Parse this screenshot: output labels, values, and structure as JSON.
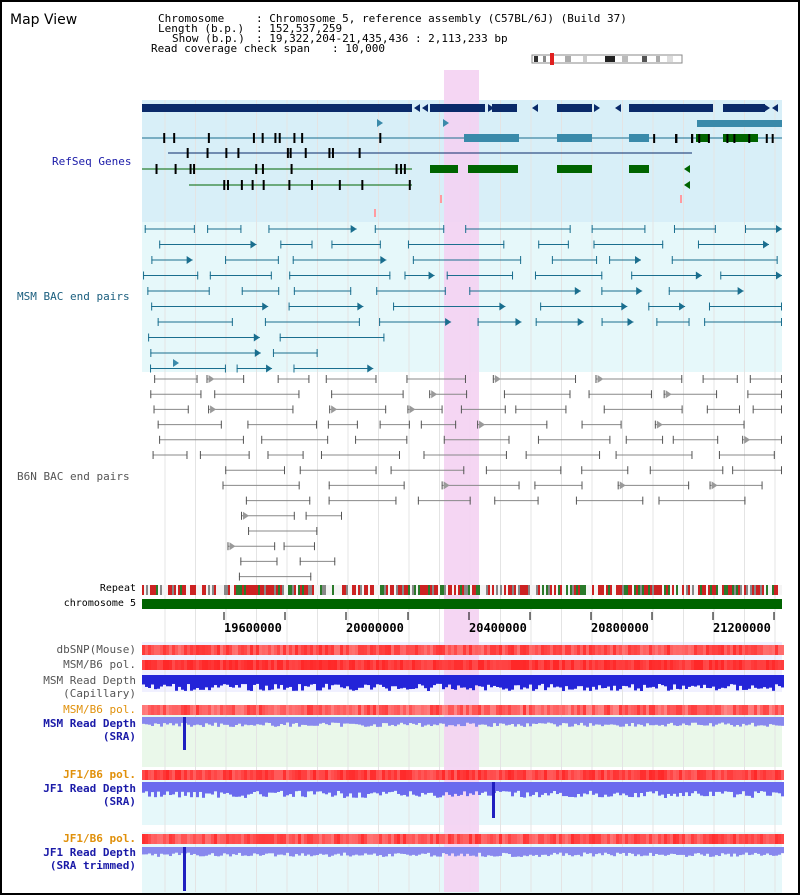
{
  "title": "Map View",
  "header": {
    "chromosome_label": "Chromosome",
    "chromosome_value": ": Chromosome 5, reference assembly (C57BL/6J) (Build 37)",
    "length_label": "Length (b.p.)",
    "length_value": ": 152,537,259",
    "show_label": "Show (b.p.)",
    "show_value": ": 19,322,204-21,435,436 : 2,113,233 bp",
    "coverage_label": "Read coverage check span",
    "coverage_value": ": 10,000"
  },
  "tracks": {
    "refseq": "RefSeq Genes",
    "msm_bac": "MSM BAC end pairs",
    "b6n_bac": "B6N BAC end pairs",
    "repeat": "Repeat",
    "chromosome": "chromosome 5",
    "dbsnp": "dbSNP(Mouse)",
    "msm_b6_pol": "MSM/B6 pol.",
    "msm_depth_cap_1": "MSM Read Depth",
    "msm_depth_cap_2": "(Capillary)",
    "msm_b6_pol2": "MSM/B6 pol.",
    "msm_depth_sra_1": "MSM Read Depth",
    "msm_depth_sra_2": "(SRA)",
    "jf1_b6_pol": "JF1/B6 pol.",
    "jf1_depth_sra_1": "JF1 Read Depth",
    "jf1_depth_sra_2": "(SRA)",
    "jf1_b6_pol2": "JF1/B6 pol.",
    "jf1_depth_trim_1": "JF1 Read Depth",
    "jf1_depth_trim_2": "(SRA trimmed)"
  },
  "axis_ticks": [
    "19600000",
    "20000000",
    "20400000",
    "20800000",
    "21200000"
  ],
  "colors": {
    "navy": "#0a2a6a",
    "teal": "#1a6e8e",
    "gene_green": "#006400",
    "highlight": "#f4d2f2",
    "refseq_bg": "#d8eff8",
    "msm_bg": "#e6f8fa",
    "depth_blue": "#2020e0",
    "label_navy": "#1a1aa8",
    "label_orange": "#e0900a",
    "label_teal": "#1a5e7e"
  }
}
